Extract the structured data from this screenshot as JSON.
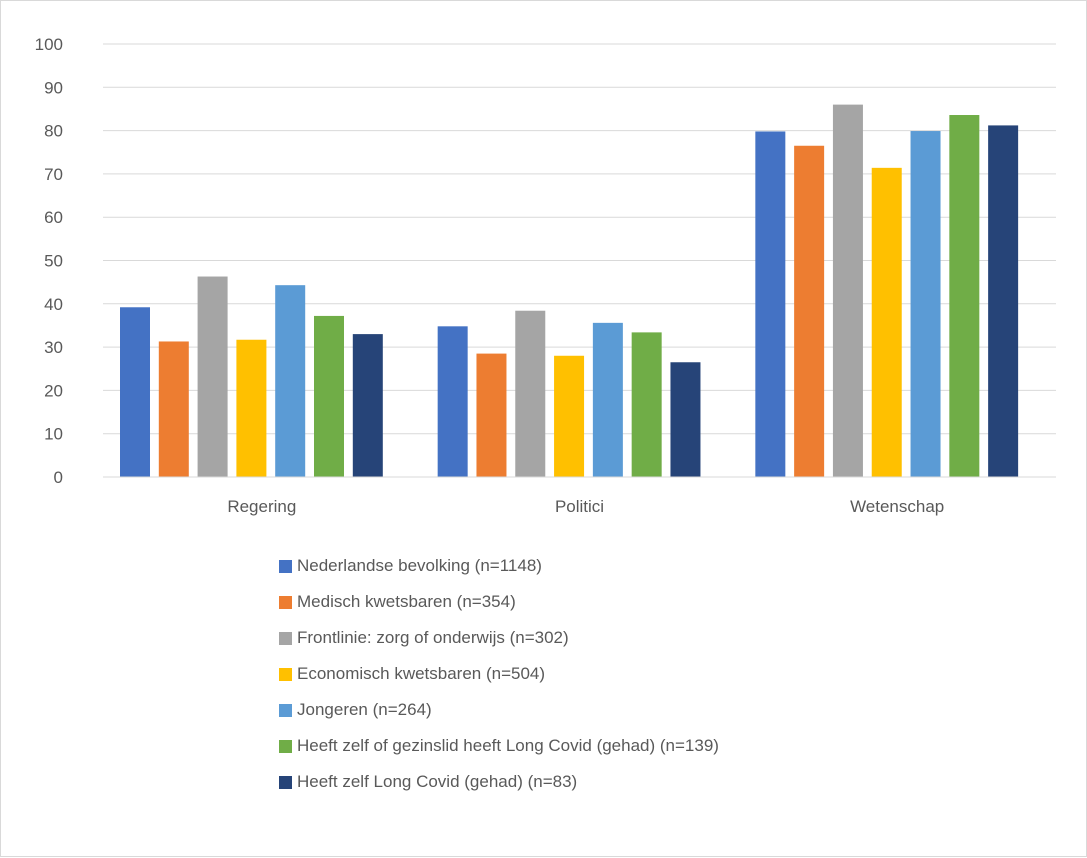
{
  "chart_data": {
    "type": "bar",
    "categories": [
      "Regering",
      "Politici",
      "Wetenschap"
    ],
    "ylim": [
      0,
      100
    ],
    "yticks": [
      0,
      10,
      20,
      30,
      40,
      50,
      60,
      70,
      80,
      90,
      100
    ],
    "grid": true,
    "legend_position": "bottom",
    "series": [
      {
        "name": "Nederlandse bevolking (n=1148)",
        "color": "#4472c4",
        "values": [
          39.2,
          34.8,
          79.8
        ]
      },
      {
        "name": "Medisch kwetsbaren (n=354)",
        "color": "#ed7d31",
        "values": [
          31.3,
          28.5,
          76.5
        ]
      },
      {
        "name": "Frontlinie: zorg of onderwijs (n=302)",
        "color": "#a5a5a5",
        "values": [
          46.3,
          38.4,
          86.0
        ]
      },
      {
        "name": "Economisch kwetsbaren (n=504)",
        "color": "#ffc000",
        "values": [
          31.7,
          28.0,
          71.4
        ]
      },
      {
        "name": "Jongeren (n=264)",
        "color": "#5b9bd5",
        "values": [
          44.3,
          35.6,
          79.9
        ]
      },
      {
        "name": "Heeft zelf of gezinslid heeft Long Covid (gehad) (n=139)",
        "color": "#70ad47",
        "values": [
          37.2,
          33.4,
          83.6
        ]
      },
      {
        "name": "Heeft zelf Long Covid (gehad) (n=83)",
        "color": "#264478",
        "values": [
          33.0,
          26.5,
          81.2
        ]
      }
    ]
  }
}
